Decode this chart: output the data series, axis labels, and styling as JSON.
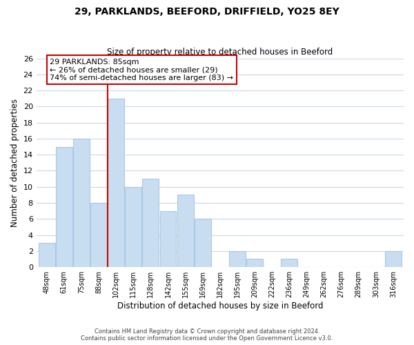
{
  "title": "29, PARKLANDS, BEEFORD, DRIFFIELD, YO25 8EY",
  "subtitle": "Size of property relative to detached houses in Beeford",
  "xlabel": "Distribution of detached houses by size in Beeford",
  "ylabel": "Number of detached properties",
  "bar_color": "#c8ddf0",
  "bar_edge_color": "#aac8e8",
  "bin_labels": [
    "48sqm",
    "61sqm",
    "75sqm",
    "88sqm",
    "102sqm",
    "115sqm",
    "128sqm",
    "142sqm",
    "155sqm",
    "169sqm",
    "182sqm",
    "195sqm",
    "209sqm",
    "222sqm",
    "236sqm",
    "249sqm",
    "262sqm",
    "276sqm",
    "289sqm",
    "303sqm",
    "316sqm"
  ],
  "bar_heights": [
    3,
    15,
    16,
    8,
    21,
    10,
    11,
    7,
    9,
    6,
    0,
    2,
    1,
    0,
    1,
    0,
    0,
    0,
    0,
    0,
    2
  ],
  "ylim": [
    0,
    26
  ],
  "yticks": [
    0,
    2,
    4,
    6,
    8,
    10,
    12,
    14,
    16,
    18,
    20,
    22,
    24,
    26
  ],
  "property_line_x": 3.5,
  "annotation_title": "29 PARKLANDS: 85sqm",
  "annotation_line1": "← 26% of detached houses are smaller (29)",
  "annotation_line2": "74% of semi-detached houses are larger (83) →",
  "annotation_box_color": "#ffffff",
  "annotation_box_edge": "#cc0000",
  "property_line_color": "#cc0000",
  "footer_line1": "Contains HM Land Registry data © Crown copyright and database right 2024.",
  "footer_line2": "Contains public sector information licensed under the Open Government Licence v3.0.",
  "background_color": "#ffffff",
  "grid_color": "#c8d8e8"
}
